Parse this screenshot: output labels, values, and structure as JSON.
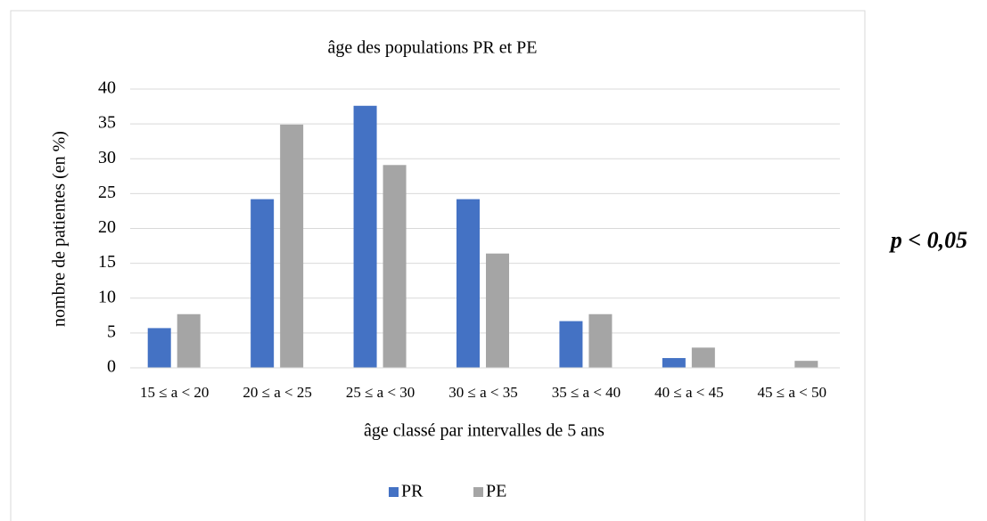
{
  "chart_data": {
    "type": "bar",
    "title": "âge des populations PR et PE",
    "x_label": "âge classé par intervalles de 5 ans",
    "y_label": "nombre de patientes (en %)",
    "annotation": "p < 0,05",
    "categories": [
      "15 ≤ a < 20",
      "20 ≤ a < 25",
      "25 ≤ a < 30",
      "30 ≤ a < 35",
      "35 ≤ a < 40",
      "40 ≤ a < 45",
      "45 ≤ a < 50"
    ],
    "series": [
      {
        "name": "PR",
        "color": "#4472c4",
        "values": [
          5.7,
          24.2,
          37.6,
          24.2,
          6.7,
          1.4,
          0
        ]
      },
      {
        "name": "PE",
        "color": "#a5a5a5",
        "values": [
          7.7,
          34.9,
          29.1,
          16.4,
          7.7,
          2.9,
          1.0
        ]
      }
    ],
    "ylim": [
      0,
      40
    ],
    "yticks": [
      0,
      5,
      10,
      15,
      20,
      25,
      30,
      35,
      40
    ],
    "grid": true,
    "legend": "bottom"
  }
}
